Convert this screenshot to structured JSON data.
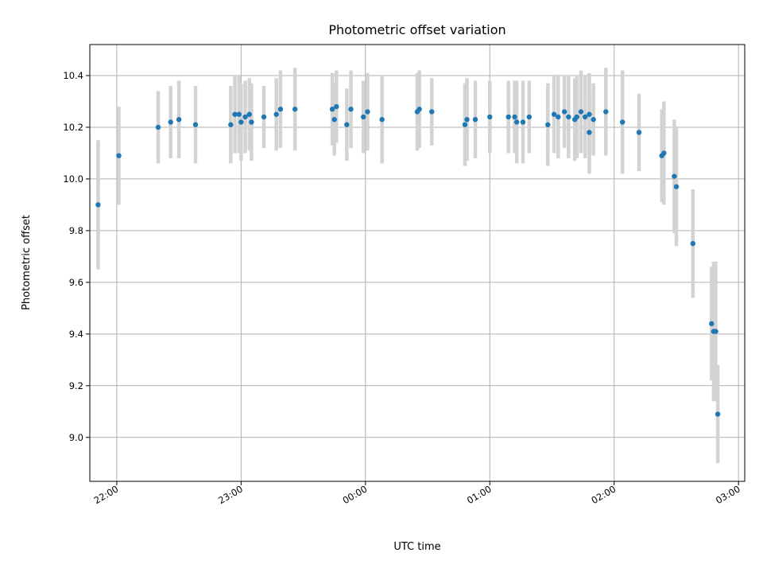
{
  "chart_data": {
    "type": "scatter",
    "title": "Photometric offset variation",
    "xlabel": "UTC time",
    "ylabel": "Photometric offset",
    "x_unit": "UTC",
    "xlim": [
      "21:47",
      "03:03"
    ],
    "ylim": [
      8.83,
      10.52
    ],
    "grid": true,
    "x_ticks": [
      "22:00",
      "23:00",
      "00:00",
      "01:00",
      "02:00",
      "03:00"
    ],
    "y_ticks": [
      "9.0",
      "9.2",
      "9.4",
      "9.6",
      "9.8",
      "10.0",
      "10.2",
      "10.4"
    ],
    "colors": {
      "marker": "#1f77b4",
      "errorbar": "#d3d3d3",
      "grid": "#b0b0b0"
    },
    "series": [
      {
        "x": [
          "21:51",
          "22:01",
          "22:20",
          "22:26",
          "22:30",
          "22:38",
          "22:55",
          "22:57",
          "22:59",
          "23:00",
          "23:02",
          "23:04",
          "23:05",
          "23:11",
          "23:17",
          "23:19",
          "23:26",
          "23:44",
          "23:45",
          "23:46",
          "23:51",
          "23:53",
          "23:59",
          "24:01",
          "24:08",
          "24:25",
          "24:26",
          "24:32",
          "24:48",
          "24:49",
          "24:53",
          "25:00",
          "25:09",
          "25:12",
          "25:13",
          "25:16",
          "25:19",
          "25:28",
          "25:31",
          "25:33",
          "25:36",
          "25:38",
          "25:41",
          "25:42",
          "25:44",
          "25:46",
          "25:48",
          "25:48",
          "25:50",
          "25:56",
          "26:04",
          "26:12",
          "26:23",
          "26:24",
          "26:29",
          "26:30",
          "26:38",
          "26:47",
          "26:48",
          "26:49",
          "26:50"
        ],
        "y": [
          9.9,
          10.09,
          10.2,
          10.22,
          10.23,
          10.21,
          10.21,
          10.25,
          10.25,
          10.22,
          10.24,
          10.25,
          10.22,
          10.24,
          10.25,
          10.27,
          10.27,
          10.27,
          10.23,
          10.28,
          10.21,
          10.27,
          10.24,
          10.26,
          10.23,
          10.26,
          10.27,
          10.26,
          10.21,
          10.23,
          10.23,
          10.24,
          10.24,
          10.24,
          10.22,
          10.22,
          10.24,
          10.21,
          10.25,
          10.24,
          10.26,
          10.24,
          10.23,
          10.24,
          10.26,
          10.24,
          10.25,
          10.18,
          10.23,
          10.26,
          10.22,
          10.18,
          10.09,
          10.1,
          10.01,
          9.97,
          9.75,
          9.44,
          9.41,
          9.41,
          9.09
        ],
        "err": [
          0.25,
          0.19,
          0.14,
          0.14,
          0.15,
          0.15,
          0.15,
          0.15,
          0.15,
          0.15,
          0.14,
          0.14,
          0.15,
          0.12,
          0.14,
          0.15,
          0.16,
          0.14,
          0.14,
          0.14,
          0.14,
          0.15,
          0.14,
          0.15,
          0.17,
          0.15,
          0.15,
          0.13,
          0.16,
          0.16,
          0.15,
          0.14,
          0.14,
          0.14,
          0.16,
          0.16,
          0.14,
          0.16,
          0.15,
          0.16,
          0.14,
          0.16,
          0.16,
          0.16,
          0.16,
          0.16,
          0.16,
          0.16,
          0.14,
          0.17,
          0.2,
          0.15,
          0.18,
          0.2,
          0.22,
          0.23,
          0.21,
          0.22,
          0.27,
          0.27,
          0.19
        ]
      }
    ]
  }
}
